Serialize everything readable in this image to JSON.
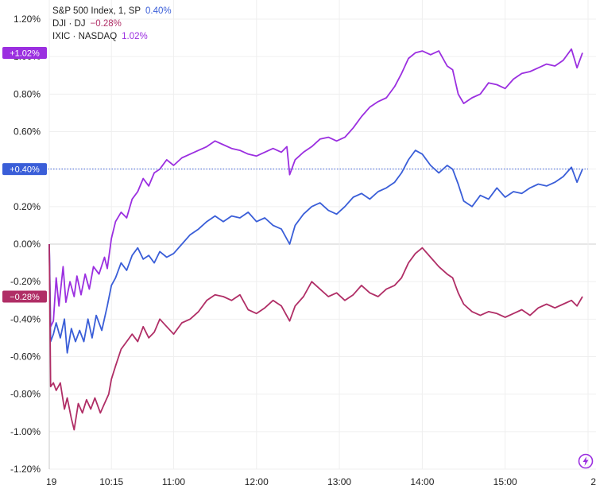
{
  "legend": {
    "items": [
      {
        "label": "S&P 500 Index, 1, SP",
        "value": "0.40%",
        "color": "#3a5ed8"
      },
      {
        "label": "DJI · DJ",
        "value": "−0.28%",
        "color": "#b02e66"
      },
      {
        "label": "IXIC · NASDAQ",
        "value": "1.02%",
        "color": "#9b2fe0"
      }
    ]
  },
  "badges": [
    {
      "text": "+1.02%",
      "value": 1.02,
      "color": "#9b2fe0"
    },
    {
      "text": "+0.40%",
      "value": 0.4,
      "color": "#3a5ed8"
    },
    {
      "text": "−0.28%",
      "value": -0.28,
      "color": "#b02e66"
    }
  ],
  "chart_data": {
    "type": "line",
    "ylim": [
      -1.2,
      1.2
    ],
    "yticks": [
      {
        "value": 1.2,
        "label": "1.20%"
      },
      {
        "value": 1.0,
        "label": "1.00%"
      },
      {
        "value": 0.8,
        "label": "0.80%"
      },
      {
        "value": 0.6,
        "label": "0.60%"
      },
      {
        "value": 0.4,
        "label": "0.40%"
      },
      {
        "value": 0.2,
        "label": "0.20%"
      },
      {
        "value": 0.0,
        "label": "0.00%"
      },
      {
        "value": -0.2,
        "label": "-0.20%"
      },
      {
        "value": -0.4,
        "label": "-0.40%"
      },
      {
        "value": -0.6,
        "label": "-0.60%"
      },
      {
        "value": -0.8,
        "label": "-0.80%"
      },
      {
        "value": -1.0,
        "label": "-1.00%"
      },
      {
        "value": -1.2,
        "label": "-1.20%"
      }
    ],
    "xlim": [
      "9:30",
      "16:00"
    ],
    "xticks": [
      {
        "time": "9:30",
        "label": "19"
      },
      {
        "time": "10:15",
        "label": "10:15"
      },
      {
        "time": "11:00",
        "label": "11:00"
      },
      {
        "time": "12:00",
        "label": "12:00"
      },
      {
        "time": "13:00",
        "label": "13:00"
      },
      {
        "time": "14:00",
        "label": "14:00"
      },
      {
        "time": "15:00",
        "label": "15:00"
      },
      {
        "time": "16:00",
        "label": "2"
      }
    ],
    "grid": true,
    "series": [
      {
        "name": "IXIC · NASDAQ",
        "color": "#9b2fe0",
        "points": [
          [
            "9:30",
            0.0
          ],
          [
            "9:31",
            -0.44
          ],
          [
            "9:33",
            -0.41
          ],
          [
            "9:35",
            -0.18
          ],
          [
            "9:37",
            -0.33
          ],
          [
            "9:40",
            -0.12
          ],
          [
            "9:42",
            -0.31
          ],
          [
            "9:45",
            -0.2
          ],
          [
            "9:48",
            -0.28
          ],
          [
            "9:50",
            -0.17
          ],
          [
            "9:53",
            -0.27
          ],
          [
            "9:56",
            -0.16
          ],
          [
            "9:59",
            -0.24
          ],
          [
            "10:02",
            -0.12
          ],
          [
            "10:06",
            -0.16
          ],
          [
            "10:10",
            -0.07
          ],
          [
            "10:12",
            -0.13
          ],
          [
            "10:15",
            0.03
          ],
          [
            "10:18",
            0.12
          ],
          [
            "10:22",
            0.17
          ],
          [
            "10:26",
            0.14
          ],
          [
            "10:30",
            0.24
          ],
          [
            "10:34",
            0.28
          ],
          [
            "10:38",
            0.35
          ],
          [
            "10:42",
            0.31
          ],
          [
            "10:46",
            0.38
          ],
          [
            "10:50",
            0.4
          ],
          [
            "10:55",
            0.45
          ],
          [
            "11:00",
            0.42
          ],
          [
            "11:06",
            0.46
          ],
          [
            "11:12",
            0.48
          ],
          [
            "11:18",
            0.5
          ],
          [
            "11:24",
            0.52
          ],
          [
            "11:30",
            0.55
          ],
          [
            "11:36",
            0.53
          ],
          [
            "11:42",
            0.51
          ],
          [
            "11:48",
            0.5
          ],
          [
            "11:54",
            0.48
          ],
          [
            "12:00",
            0.47
          ],
          [
            "12:06",
            0.49
          ],
          [
            "12:12",
            0.51
          ],
          [
            "12:18",
            0.49
          ],
          [
            "12:22",
            0.52
          ],
          [
            "12:24",
            0.37
          ],
          [
            "12:28",
            0.45
          ],
          [
            "12:34",
            0.49
          ],
          [
            "12:40",
            0.52
          ],
          [
            "12:46",
            0.56
          ],
          [
            "12:52",
            0.57
          ],
          [
            "12:58",
            0.55
          ],
          [
            "13:04",
            0.57
          ],
          [
            "13:10",
            0.62
          ],
          [
            "13:16",
            0.68
          ],
          [
            "13:22",
            0.73
          ],
          [
            "13:28",
            0.76
          ],
          [
            "13:34",
            0.78
          ],
          [
            "13:40",
            0.84
          ],
          [
            "13:45",
            0.91
          ],
          [
            "13:50",
            0.99
          ],
          [
            "13:55",
            1.02
          ],
          [
            "14:00",
            1.03
          ],
          [
            "14:06",
            1.01
          ],
          [
            "14:12",
            1.03
          ],
          [
            "14:18",
            0.95
          ],
          [
            "14:22",
            0.93
          ],
          [
            "14:26",
            0.8
          ],
          [
            "14:30",
            0.75
          ],
          [
            "14:36",
            0.78
          ],
          [
            "14:42",
            0.8
          ],
          [
            "14:48",
            0.86
          ],
          [
            "14:54",
            0.85
          ],
          [
            "15:00",
            0.83
          ],
          [
            "15:06",
            0.88
          ],
          [
            "15:12",
            0.91
          ],
          [
            "15:18",
            0.92
          ],
          [
            "15:24",
            0.94
          ],
          [
            "15:30",
            0.96
          ],
          [
            "15:36",
            0.95
          ],
          [
            "15:42",
            0.98
          ],
          [
            "15:48",
            1.04
          ],
          [
            "15:52",
            0.94
          ],
          [
            "15:56",
            1.02
          ]
        ]
      },
      {
        "name": "S&P 500 Index, 1, SP",
        "color": "#3a5ed8",
        "points": [
          [
            "9:30",
            0.0
          ],
          [
            "9:31",
            -0.52
          ],
          [
            "9:33",
            -0.48
          ],
          [
            "9:35",
            -0.42
          ],
          [
            "9:38",
            -0.5
          ],
          [
            "9:41",
            -0.4
          ],
          [
            "9:43",
            -0.58
          ],
          [
            "9:46",
            -0.45
          ],
          [
            "9:49",
            -0.52
          ],
          [
            "9:52",
            -0.46
          ],
          [
            "9:55",
            -0.52
          ],
          [
            "9:58",
            -0.4
          ],
          [
            "10:01",
            -0.5
          ],
          [
            "10:04",
            -0.38
          ],
          [
            "10:08",
            -0.46
          ],
          [
            "10:12",
            -0.33
          ],
          [
            "10:15",
            -0.22
          ],
          [
            "10:18",
            -0.18
          ],
          [
            "10:22",
            -0.1
          ],
          [
            "10:26",
            -0.14
          ],
          [
            "10:30",
            -0.06
          ],
          [
            "10:34",
            -0.02
          ],
          [
            "10:38",
            -0.08
          ],
          [
            "10:42",
            -0.06
          ],
          [
            "10:46",
            -0.1
          ],
          [
            "10:50",
            -0.04
          ],
          [
            "10:55",
            -0.07
          ],
          [
            "11:00",
            -0.05
          ],
          [
            "11:06",
            0.0
          ],
          [
            "11:12",
            0.05
          ],
          [
            "11:18",
            0.08
          ],
          [
            "11:24",
            0.12
          ],
          [
            "11:30",
            0.15
          ],
          [
            "11:36",
            0.12
          ],
          [
            "11:42",
            0.15
          ],
          [
            "11:48",
            0.14
          ],
          [
            "11:54",
            0.17
          ],
          [
            "12:00",
            0.12
          ],
          [
            "12:06",
            0.14
          ],
          [
            "12:12",
            0.1
          ],
          [
            "12:18",
            0.08
          ],
          [
            "12:24",
            0.0
          ],
          [
            "12:28",
            0.1
          ],
          [
            "12:34",
            0.16
          ],
          [
            "12:40",
            0.2
          ],
          [
            "12:46",
            0.22
          ],
          [
            "12:52",
            0.18
          ],
          [
            "12:58",
            0.16
          ],
          [
            "13:04",
            0.2
          ],
          [
            "13:10",
            0.25
          ],
          [
            "13:16",
            0.27
          ],
          [
            "13:22",
            0.24
          ],
          [
            "13:28",
            0.28
          ],
          [
            "13:34",
            0.3
          ],
          [
            "13:40",
            0.33
          ],
          [
            "13:45",
            0.38
          ],
          [
            "13:50",
            0.45
          ],
          [
            "13:55",
            0.5
          ],
          [
            "14:00",
            0.48
          ],
          [
            "14:06",
            0.42
          ],
          [
            "14:12",
            0.38
          ],
          [
            "14:18",
            0.42
          ],
          [
            "14:22",
            0.4
          ],
          [
            "14:26",
            0.32
          ],
          [
            "14:30",
            0.23
          ],
          [
            "14:36",
            0.2
          ],
          [
            "14:42",
            0.26
          ],
          [
            "14:48",
            0.24
          ],
          [
            "14:54",
            0.3
          ],
          [
            "15:00",
            0.25
          ],
          [
            "15:06",
            0.28
          ],
          [
            "15:12",
            0.27
          ],
          [
            "15:18",
            0.3
          ],
          [
            "15:24",
            0.32
          ],
          [
            "15:30",
            0.31
          ],
          [
            "15:36",
            0.33
          ],
          [
            "15:42",
            0.36
          ],
          [
            "15:48",
            0.41
          ],
          [
            "15:52",
            0.33
          ],
          [
            "15:56",
            0.4
          ]
        ]
      },
      {
        "name": "DJI · DJ",
        "color": "#b02e66",
        "points": [
          [
            "9:30",
            0.0
          ],
          [
            "9:31",
            -0.76
          ],
          [
            "9:33",
            -0.74
          ],
          [
            "9:35",
            -0.78
          ],
          [
            "9:38",
            -0.74
          ],
          [
            "9:41",
            -0.88
          ],
          [
            "9:43",
            -0.82
          ],
          [
            "9:46",
            -0.93
          ],
          [
            "9:48",
            -0.99
          ],
          [
            "9:51",
            -0.85
          ],
          [
            "9:54",
            -0.9
          ],
          [
            "9:57",
            -0.83
          ],
          [
            "10:00",
            -0.88
          ],
          [
            "10:03",
            -0.82
          ],
          [
            "10:07",
            -0.9
          ],
          [
            "10:10",
            -0.85
          ],
          [
            "10:13",
            -0.8
          ],
          [
            "10:15",
            -0.72
          ],
          [
            "10:18",
            -0.65
          ],
          [
            "10:22",
            -0.56
          ],
          [
            "10:26",
            -0.52
          ],
          [
            "10:30",
            -0.48
          ],
          [
            "10:34",
            -0.52
          ],
          [
            "10:38",
            -0.44
          ],
          [
            "10:42",
            -0.5
          ],
          [
            "10:46",
            -0.47
          ],
          [
            "10:50",
            -0.4
          ],
          [
            "10:55",
            -0.44
          ],
          [
            "11:00",
            -0.48
          ],
          [
            "11:06",
            -0.42
          ],
          [
            "11:12",
            -0.4
          ],
          [
            "11:18",
            -0.36
          ],
          [
            "11:24",
            -0.3
          ],
          [
            "11:30",
            -0.27
          ],
          [
            "11:36",
            -0.28
          ],
          [
            "11:42",
            -0.3
          ],
          [
            "11:48",
            -0.27
          ],
          [
            "11:54",
            -0.35
          ],
          [
            "12:00",
            -0.37
          ],
          [
            "12:06",
            -0.34
          ],
          [
            "12:12",
            -0.3
          ],
          [
            "12:18",
            -0.33
          ],
          [
            "12:24",
            -0.41
          ],
          [
            "12:28",
            -0.33
          ],
          [
            "12:34",
            -0.28
          ],
          [
            "12:40",
            -0.2
          ],
          [
            "12:46",
            -0.24
          ],
          [
            "12:52",
            -0.28
          ],
          [
            "12:58",
            -0.26
          ],
          [
            "13:04",
            -0.3
          ],
          [
            "13:10",
            -0.27
          ],
          [
            "13:16",
            -0.22
          ],
          [
            "13:22",
            -0.26
          ],
          [
            "13:28",
            -0.28
          ],
          [
            "13:34",
            -0.24
          ],
          [
            "13:40",
            -0.22
          ],
          [
            "13:45",
            -0.18
          ],
          [
            "13:50",
            -0.1
          ],
          [
            "13:55",
            -0.05
          ],
          [
            "14:00",
            -0.02
          ],
          [
            "14:06",
            -0.07
          ],
          [
            "14:12",
            -0.12
          ],
          [
            "14:18",
            -0.16
          ],
          [
            "14:22",
            -0.18
          ],
          [
            "14:26",
            -0.26
          ],
          [
            "14:30",
            -0.32
          ],
          [
            "14:36",
            -0.36
          ],
          [
            "14:42",
            -0.38
          ],
          [
            "14:48",
            -0.36
          ],
          [
            "14:54",
            -0.37
          ],
          [
            "15:00",
            -0.39
          ],
          [
            "15:06",
            -0.37
          ],
          [
            "15:12",
            -0.35
          ],
          [
            "15:18",
            -0.38
          ],
          [
            "15:24",
            -0.34
          ],
          [
            "15:30",
            -0.32
          ],
          [
            "15:36",
            -0.34
          ],
          [
            "15:42",
            -0.32
          ],
          [
            "15:48",
            -0.3
          ],
          [
            "15:52",
            -0.33
          ],
          [
            "15:56",
            -0.28
          ]
        ]
      }
    ]
  }
}
